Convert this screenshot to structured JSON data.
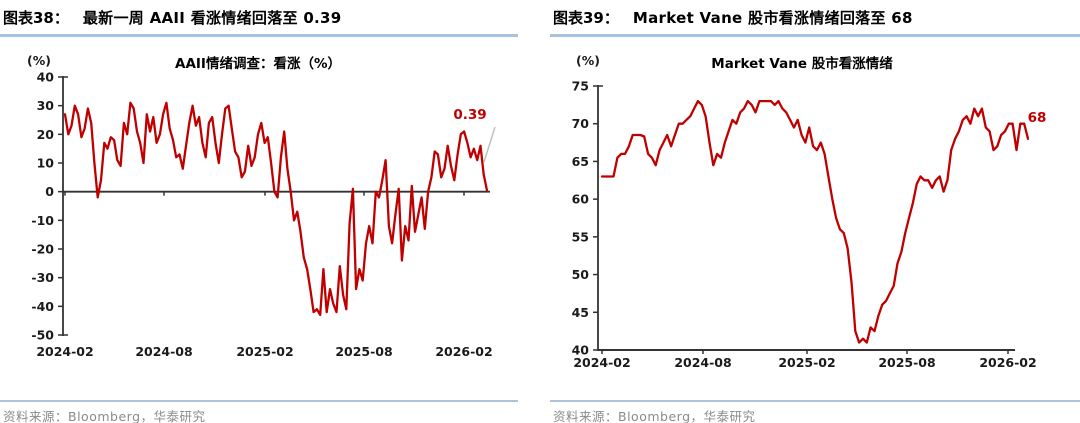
{
  "colors": {
    "line_red": "#C00000",
    "axis": "#333333",
    "tick_text": "#1a1a1a",
    "header_underline": "#A6C3DE",
    "source_divider": "#ABC2D8",
    "source_text": "#8a8a8a",
    "leader_gray": "#BFBFBF"
  },
  "figures": [
    {
      "label": "图表38：",
      "title": "最新一周 AAII 看涨情绪回落至 0.39",
      "source": "资料来源：Bloomberg，华泰研究"
    },
    {
      "label": "图表39：",
      "title": "Market Vane 股市看涨情绪回落至 68",
      "source": "资料来源：Bloomberg，华泰研究"
    }
  ],
  "chart_data": [
    {
      "type": "line",
      "title": "AAII情绪调查：看涨（%）",
      "unit_label": "(%)",
      "series_name": "AAII情绪调查：看涨",
      "frequency": "weekly",
      "x_range": [
        "2024-02",
        "2026-02"
      ],
      "x_tick_labels": [
        "2024-02",
        "2024-08",
        "2025-02",
        "2025-08",
        "2026-02"
      ],
      "ylim": [
        -50,
        40
      ],
      "y_ticks": [
        40,
        30,
        20,
        10,
        0,
        -10,
        -20,
        -30,
        -40,
        -50
      ],
      "x_axis_at": 0,
      "grid": false,
      "legend": "none",
      "line_color": "#C00000",
      "end_label": "0.39",
      "latest_value": 0.39,
      "values": [
        27,
        20,
        23,
        30,
        27,
        19,
        22,
        29,
        24,
        10,
        -2,
        4,
        17,
        15,
        19,
        18,
        11,
        9,
        24,
        20,
        31,
        29,
        21,
        17,
        10,
        27,
        21,
        26,
        17,
        20,
        27,
        31,
        22,
        18,
        12,
        13,
        8,
        16,
        24,
        30,
        23,
        26,
        17,
        12,
        24,
        26,
        17,
        10,
        20,
        29,
        30,
        22,
        14,
        12,
        5,
        7,
        16,
        9,
        12,
        20,
        24,
        17,
        19,
        10,
        0,
        -2,
        12,
        21,
        8,
        0,
        -10,
        -7,
        -14,
        -23,
        -27,
        -34,
        -42,
        -41,
        -43,
        -27,
        -42,
        -34,
        -39,
        -42,
        -26,
        -36,
        -41,
        -11,
        1,
        -34,
        -27,
        -31,
        -18,
        -12,
        -18,
        0,
        -2,
        4,
        11,
        -12,
        -18,
        -8,
        1,
        -24,
        -12,
        -17,
        2,
        -14,
        -8,
        -2,
        -13,
        0,
        5,
        14,
        13,
        5,
        8,
        16,
        9,
        4,
        13,
        20,
        21,
        17,
        12,
        15,
        11,
        16,
        6,
        0.39
      ]
    },
    {
      "type": "line",
      "title": "Market Vane 股市看涨情绪",
      "unit_label": "(%)",
      "series_name": "Market Vane 股市看涨情绪",
      "frequency": "weekly",
      "x_range": [
        "2024-02",
        "2026-02"
      ],
      "x_tick_labels": [
        "2024-02",
        "2024-08",
        "2025-02",
        "2025-08",
        "2026-02"
      ],
      "ylim": [
        40,
        75
      ],
      "y_ticks": [
        75,
        70,
        65,
        60,
        55,
        50,
        45,
        40
      ],
      "x_axis_at": 40,
      "grid": false,
      "legend": "none",
      "line_color": "#C00000",
      "end_label": "68",
      "latest_value": 68,
      "values": [
        63,
        63,
        63,
        63,
        65.5,
        66,
        66,
        67,
        68.5,
        68.5,
        68.5,
        68.3,
        66,
        65.5,
        64.5,
        66.5,
        67.5,
        68.5,
        67,
        68.5,
        70,
        70,
        70.5,
        71,
        72,
        73,
        72.5,
        71,
        67.5,
        64.5,
        66,
        65.5,
        67.5,
        69,
        70.5,
        70,
        71.5,
        72,
        73,
        72.5,
        71.5,
        73,
        73,
        73,
        73,
        72.5,
        73,
        72,
        71.5,
        70.5,
        69.5,
        70.5,
        68.5,
        67.5,
        69.5,
        67,
        66.5,
        67.5,
        66,
        63,
        60,
        57.5,
        56,
        55.5,
        53.5,
        49,
        42.5,
        41,
        41.5,
        41,
        43,
        42.5,
        44.5,
        46,
        46.5,
        47.5,
        48.5,
        51.5,
        53,
        55.5,
        57.5,
        59.5,
        62,
        63,
        62.5,
        62.5,
        61.5,
        62.5,
        63,
        61,
        62.5,
        66.5,
        68,
        69,
        70.5,
        71,
        70,
        72,
        71,
        72,
        69.5,
        69,
        66.5,
        67,
        68.5,
        69,
        70,
        70,
        66.5,
        70,
        70,
        68
      ]
    }
  ]
}
